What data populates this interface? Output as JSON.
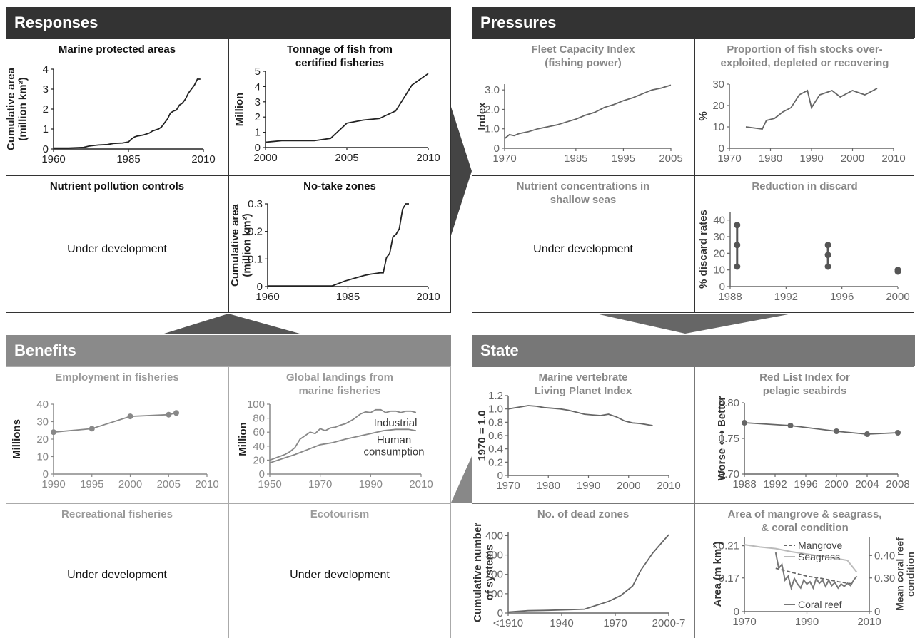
{
  "sections": {
    "responses": "Responses",
    "pressures": "Pressures",
    "benefits": "Benefits",
    "state": "State"
  },
  "colors": {
    "dark": "#333333",
    "grey": "#8a8a8a",
    "line_dark": "#222222",
    "line_grey": "#777777",
    "light": "#aaaaaa"
  },
  "under_development": "Under development",
  "panels": {
    "mpa": {
      "title": "Marine protected areas"
    },
    "tonnage": {
      "title": "Tonnage of fish from\ncertified fisheries"
    },
    "nutrient_controls": {
      "title": "Nutrient pollution controls"
    },
    "notake": {
      "title": "No-take zones"
    },
    "fleet": {
      "title": "Fleet Capacity Index\n(fishing power)"
    },
    "stocks": {
      "title": "Proportion of fish stocks over-\nexploited, depleted or recovering"
    },
    "nutrient_conc": {
      "title": "Nutrient concentrations in\nshallow seas"
    },
    "discard": {
      "title": "Reduction in discard"
    },
    "employment": {
      "title": "Employment in fisheries"
    },
    "landings": {
      "title": "Global landings from\nmarine fisheries"
    },
    "recreational": {
      "title": "Recreational fisheries"
    },
    "ecotourism": {
      "title": "Ecotourism"
    },
    "lpi": {
      "title": "Marine vertebrate\nLiving Planet Index"
    },
    "redlist": {
      "title": "Red List Index for\npelagic seabirds"
    },
    "deadzones": {
      "title": "No. of dead zones"
    },
    "mangrove": {
      "title": "Area of mangrove & seagrass,\n& coral condition"
    }
  },
  "chart_data": [
    {
      "id": "mpa",
      "type": "line",
      "ylabel": "Cumulative area\n(million km²)",
      "xticks": [
        "1960",
        "1985",
        "2010"
      ],
      "xlim": [
        1960,
        2010
      ],
      "yticks": [
        "0",
        "1",
        "2",
        "3",
        "4"
      ],
      "ylim": [
        0,
        4
      ],
      "series": [
        {
          "x": [
            1960,
            1965,
            1970,
            1972,
            1975,
            1978,
            1980,
            1983,
            1985,
            1986,
            1987,
            1988,
            1990,
            1992,
            1993,
            1995,
            1996,
            1997,
            1998,
            1999,
            2000,
            2001,
            2002,
            2003,
            2004,
            2005,
            2006,
            2007,
            2008,
            2009
          ],
          "y": [
            0.05,
            0.05,
            0.08,
            0.15,
            0.2,
            0.22,
            0.28,
            0.3,
            0.35,
            0.5,
            0.6,
            0.65,
            0.7,
            0.8,
            0.9,
            1.0,
            1.1,
            1.3,
            1.5,
            1.8,
            1.9,
            1.95,
            2.2,
            2.3,
            2.5,
            2.8,
            3.0,
            3.2,
            3.5,
            3.5
          ]
        }
      ]
    },
    {
      "id": "tonnage",
      "type": "line",
      "ylabel": "Million",
      "xticks": [
        "2000",
        "2005",
        "2010"
      ],
      "xlim": [
        2000,
        2010
      ],
      "yticks": [
        "0",
        "1",
        "2",
        "3",
        "4",
        "5"
      ],
      "ylim": [
        0,
        5
      ],
      "series": [
        {
          "x": [
            2000,
            2001,
            2003,
            2004,
            2005,
            2006,
            2007,
            2008,
            2009,
            2010
          ],
          "y": [
            0.35,
            0.45,
            0.45,
            0.6,
            1.6,
            1.8,
            1.9,
            2.4,
            4.1,
            4.85
          ]
        }
      ]
    },
    {
      "id": "notake",
      "type": "line",
      "ylabel": "Cumulative area\n(million km²)",
      "xticks": [
        "1960",
        "1985",
        "2010"
      ],
      "xlim": [
        1960,
        2010
      ],
      "yticks": [
        "0",
        "0.1",
        "0.2",
        "0.3"
      ],
      "ylim": [
        0,
        0.3
      ],
      "series": [
        {
          "x": [
            1960,
            1980,
            1984,
            1987,
            1990,
            1992,
            1994,
            1995,
            1996,
            1997,
            1998,
            1999,
            2000,
            2001,
            2002,
            2003,
            2004
          ],
          "y": [
            0.002,
            0.002,
            0.02,
            0.03,
            0.04,
            0.045,
            0.048,
            0.05,
            0.05,
            0.105,
            0.12,
            0.18,
            0.19,
            0.21,
            0.28,
            0.3,
            0.3
          ]
        }
      ]
    },
    {
      "id": "fleet",
      "type": "line",
      "ylabel": "Index",
      "xticks": [
        "1970",
        "1985",
        "1995",
        "2005"
      ],
      "xlim": [
        1970,
        2005
      ],
      "yticks": [
        "0",
        "1.0",
        "2.0",
        "3.0"
      ],
      "ylim": [
        0,
        3.3
      ],
      "series": [
        {
          "x": [
            1970,
            1971,
            1972,
            1973,
            1975,
            1977,
            1979,
            1981,
            1983,
            1985,
            1987,
            1989,
            1991,
            1993,
            1995,
            1997,
            1999,
            2001,
            2003,
            2005
          ],
          "y": [
            0.5,
            0.7,
            0.65,
            0.75,
            0.85,
            1.0,
            1.1,
            1.2,
            1.35,
            1.5,
            1.7,
            1.85,
            2.1,
            2.25,
            2.45,
            2.6,
            2.8,
            3.0,
            3.1,
            3.25
          ]
        }
      ]
    },
    {
      "id": "stocks",
      "type": "line",
      "ylabel": "%",
      "xticks": [
        "1970",
        "1980",
        "1990",
        "2000",
        "2010"
      ],
      "xlim": [
        1970,
        2010
      ],
      "yticks": [
        "0",
        "10",
        "20",
        "30"
      ],
      "ylim": [
        0,
        30
      ],
      "series": [
        {
          "x": [
            1974,
            1978,
            1979,
            1981,
            1983,
            1985,
            1987,
            1989,
            1990,
            1992,
            1995,
            1997,
            2000,
            2003,
            2006
          ],
          "y": [
            10,
            9,
            13,
            14,
            17,
            19,
            25,
            27,
            19,
            25,
            27,
            24,
            27,
            25,
            28
          ]
        }
      ]
    },
    {
      "id": "discard",
      "type": "dotrange",
      "ylabel": "% discard rates",
      "xticks": [
        "1988",
        "1992",
        "1996",
        "2000"
      ],
      "xlim": [
        1988,
        2000
      ],
      "yticks": [
        "0",
        "10",
        "20",
        "30",
        "40"
      ],
      "ylim": [
        0,
        45
      ],
      "groups": [
        {
          "x": 1988.5,
          "values": [
            12,
            25,
            37
          ]
        },
        {
          "x": 1995,
          "values": [
            12,
            19,
            25
          ]
        },
        {
          "x": 2000,
          "values": [
            9,
            10
          ]
        }
      ]
    },
    {
      "id": "employment",
      "type": "line",
      "ylabel": "Millions",
      "xticks": [
        "1990",
        "1995",
        "2000",
        "2005",
        "2010"
      ],
      "xlim": [
        1990,
        2010
      ],
      "yticks": [
        "0",
        "10",
        "20",
        "30",
        "40"
      ],
      "ylim": [
        0,
        40
      ],
      "series": [
        {
          "x": [
            1990,
            1995,
            2000,
            2005,
            2006
          ],
          "y": [
            24,
            26,
            33,
            34,
            35
          ],
          "markers": true
        }
      ]
    },
    {
      "id": "landings",
      "type": "line",
      "ylabel": "Million",
      "xticks": [
        "1950",
        "1970",
        "1990",
        "2010"
      ],
      "xlim": [
        1950,
        2010
      ],
      "yticks": [
        "0",
        "20",
        "40",
        "60",
        "80",
        "100"
      ],
      "ylim": [
        0,
        100
      ],
      "series": [
        {
          "name": "Industrial",
          "x": [
            1950,
            1953,
            1956,
            1958,
            1960,
            1962,
            1964,
            1966,
            1968,
            1970,
            1972,
            1974,
            1976,
            1978,
            1980,
            1983,
            1986,
            1988,
            1990,
            1992,
            1994,
            1996,
            1998,
            2000,
            2002,
            2004,
            2006,
            2008
          ],
          "y": [
            20,
            24,
            28,
            32,
            38,
            50,
            55,
            60,
            58,
            65,
            62,
            66,
            67,
            70,
            72,
            78,
            86,
            89,
            88,
            92,
            92,
            88,
            90,
            90,
            88,
            90,
            90,
            88
          ]
        },
        {
          "name": "Human\nconsumption",
          "x": [
            1950,
            1955,
            1960,
            1965,
            1970,
            1975,
            1980,
            1985,
            1990,
            1995,
            2000,
            2005,
            2008
          ],
          "y": [
            16,
            22,
            28,
            35,
            42,
            45,
            50,
            54,
            58,
            62,
            64,
            64,
            62
          ]
        }
      ]
    },
    {
      "id": "lpi",
      "type": "line",
      "ylabel": "1970 = 1.0",
      "xticks": [
        "1970",
        "1980",
        "1990",
        "2000",
        "2010"
      ],
      "xlim": [
        1970,
        2010
      ],
      "yticks": [
        "0",
        "0.2",
        "0.4",
        "0.6",
        "0.8",
        "1.0",
        "1.2"
      ],
      "ylim": [
        0,
        1.2
      ],
      "series": [
        {
          "x": [
            1970,
            1973,
            1975,
            1977,
            1979,
            1981,
            1983,
            1985,
            1987,
            1989,
            1991,
            1993,
            1995,
            1997,
            1999,
            2001,
            2003,
            2006
          ],
          "y": [
            1.0,
            1.03,
            1.05,
            1.04,
            1.02,
            1.01,
            1.0,
            0.98,
            0.95,
            0.92,
            0.91,
            0.9,
            0.92,
            0.88,
            0.82,
            0.79,
            0.78,
            0.75
          ]
        }
      ]
    },
    {
      "id": "redlist",
      "type": "line",
      "ylabel": "Worse ⟷ Better",
      "xticks": [
        "1988",
        "1992",
        "1996",
        "2000",
        "2004",
        "2008"
      ],
      "xlim": [
        1988,
        2008
      ],
      "yticks": [
        "0.70",
        "0.75",
        "0.80"
      ],
      "ylim": [
        0.7,
        0.8
      ],
      "series": [
        {
          "x": [
            1988,
            1994,
            2000,
            2004,
            2008
          ],
          "y": [
            0.772,
            0.768,
            0.76,
            0.756,
            0.758
          ],
          "markers": true
        }
      ]
    },
    {
      "id": "deadzones",
      "type": "line",
      "ylabel": "Cumulative number\nof systems",
      "xticks": [
        "<1910",
        "1940",
        "1970",
        "2000-7"
      ],
      "xlim": [
        0,
        4
      ],
      "yticks": [
        "0",
        "100",
        "200",
        "300",
        "400"
      ],
      "ylim": [
        0,
        420
      ],
      "series": [
        {
          "x": [
            0,
            0.5,
            1,
            1.5,
            1.9,
            2.2,
            2.5,
            2.8,
            3.1,
            3.3,
            3.6,
            4.0
          ],
          "y": [
            5,
            12,
            14,
            17,
            20,
            40,
            60,
            90,
            140,
            220,
            310,
            405
          ]
        }
      ]
    },
    {
      "id": "mangrove",
      "type": "line",
      "ylabel": "Area (m km²)",
      "ylabel2": "Mean coral reef\ncondition",
      "xticks": [
        "1970",
        "1990",
        "2010"
      ],
      "xlim": [
        1970,
        2010
      ],
      "yticks": [
        "0",
        "0.17",
        "0.21"
      ],
      "y2ticks": [
        "0",
        "0.30",
        "0.40"
      ],
      "series": [
        {
          "name": "Mangrove",
          "x": [
            1980,
            1985,
            1990,
            1995,
            2000,
            2005
          ],
          "y": [
            0.185,
            0.18,
            0.175,
            0.172,
            0.168,
            0.165
          ]
        },
        {
          "name": "Seagrass",
          "x": [
            1970,
            1975,
            1980,
            1985,
            1990,
            1995,
            2000,
            2003,
            2006
          ],
          "y": [
            0.215,
            0.212,
            0.21,
            0.206,
            0.203,
            0.2,
            0.197,
            0.195,
            0.18
          ]
        },
        {
          "name": "Coral reef",
          "x": [
            1980,
            1981,
            1982,
            1983,
            1984,
            1985,
            1986,
            1987,
            1988,
            1989,
            1990,
            1991,
            1992,
            1993,
            1994,
            1995,
            1996,
            1997,
            1998,
            1999,
            2000,
            2001,
            2002,
            2003,
            2004,
            2005,
            2006
          ],
          "y": [
            0.205,
            0.185,
            0.19,
            0.17,
            0.175,
            0.16,
            0.172,
            0.165,
            0.16,
            0.17,
            0.165,
            0.168,
            0.16,
            0.172,
            0.166,
            0.17,
            0.162,
            0.17,
            0.163,
            0.167,
            0.16,
            0.165,
            0.162,
            0.166,
            0.163,
            0.17,
            0.175
          ]
        }
      ]
    }
  ]
}
